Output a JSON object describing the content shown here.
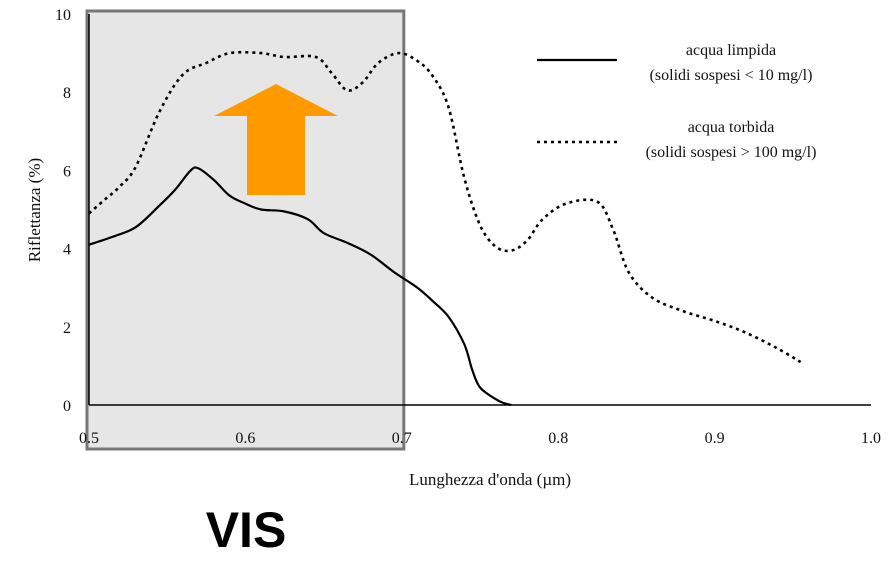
{
  "chart_data": {
    "type": "line",
    "xlabel": "Lunghezza d'onda (µm)",
    "ylabel": "Riflettanza (%)",
    "xlim": [
      0.5,
      1.0
    ],
    "ylim": [
      0,
      10
    ],
    "x_ticks": [
      "0.5",
      "0.6",
      "0.7",
      "0.8",
      "0.9",
      "1.0"
    ],
    "y_ticks": [
      "0",
      "2",
      "4",
      "6",
      "8",
      "10"
    ],
    "grid": false,
    "legend_position": "top-right",
    "series": [
      {
        "name": "acqua limpida",
        "name_detail": "(solidi sospesi < 10 mg/l)",
        "style": "solid",
        "color": "#000000",
        "points": [
          [
            0.5,
            4.1
          ],
          [
            0.515,
            4.3
          ],
          [
            0.53,
            4.55
          ],
          [
            0.545,
            5.1
          ],
          [
            0.555,
            5.5
          ],
          [
            0.565,
            6.0
          ],
          [
            0.57,
            6.05
          ],
          [
            0.58,
            5.75
          ],
          [
            0.59,
            5.35
          ],
          [
            0.6,
            5.15
          ],
          [
            0.61,
            5.0
          ],
          [
            0.625,
            4.95
          ],
          [
            0.64,
            4.75
          ],
          [
            0.65,
            4.4
          ],
          [
            0.665,
            4.15
          ],
          [
            0.68,
            3.85
          ],
          [
            0.695,
            3.4
          ],
          [
            0.71,
            3.0
          ],
          [
            0.72,
            2.65
          ],
          [
            0.73,
            2.25
          ],
          [
            0.74,
            1.55
          ],
          [
            0.745,
            0.9
          ],
          [
            0.75,
            0.45
          ],
          [
            0.76,
            0.15
          ],
          [
            0.765,
            0.05
          ],
          [
            0.77,
            0.0
          ]
        ]
      },
      {
        "name": "acqua torbida",
        "name_detail": "(solidi sospesi > 100 mg/l)",
        "style": "dotted",
        "color": "#000000",
        "points": [
          [
            0.5,
            4.9
          ],
          [
            0.51,
            5.25
          ],
          [
            0.52,
            5.6
          ],
          [
            0.53,
            6.1
          ],
          [
            0.545,
            7.5
          ],
          [
            0.56,
            8.45
          ],
          [
            0.575,
            8.75
          ],
          [
            0.59,
            9.0
          ],
          [
            0.61,
            9.0
          ],
          [
            0.625,
            8.9
          ],
          [
            0.645,
            8.9
          ],
          [
            0.655,
            8.5
          ],
          [
            0.665,
            8.05
          ],
          [
            0.675,
            8.25
          ],
          [
            0.685,
            8.75
          ],
          [
            0.698,
            9.0
          ],
          [
            0.71,
            8.8
          ],
          [
            0.72,
            8.4
          ],
          [
            0.73,
            7.6
          ],
          [
            0.74,
            5.8
          ],
          [
            0.75,
            4.6
          ],
          [
            0.76,
            4.05
          ],
          [
            0.77,
            3.95
          ],
          [
            0.78,
            4.2
          ],
          [
            0.79,
            4.75
          ],
          [
            0.805,
            5.15
          ],
          [
            0.825,
            5.2
          ],
          [
            0.835,
            4.5
          ],
          [
            0.845,
            3.4
          ],
          [
            0.86,
            2.75
          ],
          [
            0.88,
            2.4
          ],
          [
            0.9,
            2.15
          ],
          [
            0.92,
            1.85
          ],
          [
            0.94,
            1.45
          ],
          [
            0.955,
            1.1
          ]
        ]
      }
    ],
    "annotations": {
      "band_label": "VIS",
      "band_x_range": [
        0.5,
        0.7
      ],
      "band_fill": "#e6e6e6",
      "band_stroke": "#777777",
      "arrow_color": "#ff9900",
      "arrow_direction": "up"
    }
  }
}
